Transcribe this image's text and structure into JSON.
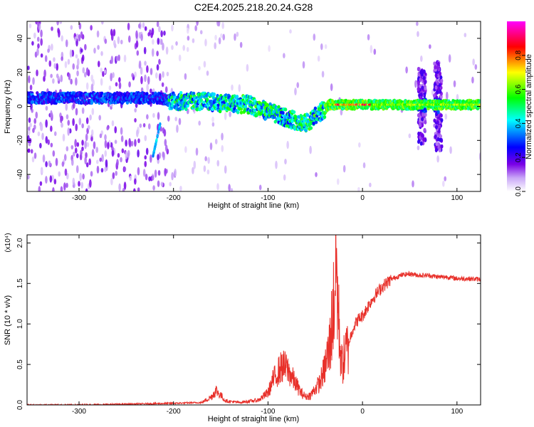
{
  "title": "C2E4.2025.218.20.24.G28",
  "chart_data": [
    {
      "type": "heatmap",
      "xlabel": "Height of straight line (km)",
      "ylabel": "Frequency (Hz)",
      "xlim": [
        -355,
        125
      ],
      "ylim": [
        -50,
        50
      ],
      "xticks": [
        -300,
        -200,
        -100,
        0,
        100
      ],
      "yticks": [
        -40,
        -20,
        0,
        20,
        40
      ],
      "colorbar": {
        "label": "Normalized spectral amplitude",
        "range": [
          0.0,
          1.0
        ],
        "ticks": [
          "0.0",
          "0.2",
          "0.4",
          "0.6",
          "0.8"
        ],
        "stops": [
          "#ffffff",
          "#7a00e6",
          "#0000ff",
          "#00ffff",
          "#00ff00",
          "#ffff00",
          "#ff0000",
          "#ff00ff"
        ]
      },
      "ridge": {
        "x": [
          -355,
          -300,
          -250,
          -215,
          -200,
          -170,
          -150,
          -120,
          -100,
          -80,
          -60,
          -45,
          -35,
          -20,
          0,
          20,
          60,
          90,
          125
        ],
        "y": [
          5,
          5,
          5,
          5,
          3,
          3,
          2,
          1,
          -3,
          -7,
          -10,
          -4,
          1,
          1,
          1,
          1,
          1,
          1,
          1
        ]
      },
      "features": [
        {
          "x": -218,
          "y": -18,
          "note": "diagonal streak"
        },
        {
          "x": 63,
          "y": 0,
          "note": "vertical band"
        },
        {
          "x": 80,
          "y": 0,
          "note": "vertical band"
        }
      ]
    },
    {
      "type": "line",
      "xlabel": "Height of straight line (km)",
      "ylabel": "SNR (10 * v/v)",
      "scale_label": "(x10⁴)",
      "xlim": [
        -355,
        125
      ],
      "ylim": [
        0,
        2.1
      ],
      "xticks": [
        -300,
        -200,
        -100,
        0,
        100
      ],
      "yticks": [
        "0.0",
        "0.5",
        "1.0",
        "1.5",
        "2.0"
      ],
      "color": "#e8302a",
      "series": [
        {
          "x": [
            -355,
            -300,
            -250,
            -200,
            -170,
            -160,
            -155,
            -150,
            -145,
            -130,
            -110,
            -100,
            -95,
            -90,
            -85,
            -80,
            -75,
            -70,
            -65,
            -60,
            -55,
            -50,
            -45,
            -40,
            -35,
            -30,
            -28,
            -25,
            -22,
            -20,
            -15,
            -10,
            -5,
            0,
            5,
            10,
            20,
            30,
            40,
            50,
            60,
            70,
            80,
            90,
            100,
            110,
            125
          ],
          "y": [
            0.0,
            0.0,
            0.01,
            0.02,
            0.03,
            0.1,
            0.18,
            0.12,
            0.05,
            0.03,
            0.06,
            0.15,
            0.3,
            0.4,
            0.48,
            0.45,
            0.35,
            0.25,
            0.15,
            0.1,
            0.12,
            0.2,
            0.28,
            0.45,
            0.7,
            1.3,
            1.8,
            1.0,
            0.5,
            0.55,
            0.75,
            0.95,
            1.05,
            1.1,
            1.2,
            1.3,
            1.45,
            1.55,
            1.6,
            1.62,
            1.6,
            1.6,
            1.58,
            1.58,
            1.56,
            1.56,
            1.55
          ]
        }
      ]
    }
  ]
}
